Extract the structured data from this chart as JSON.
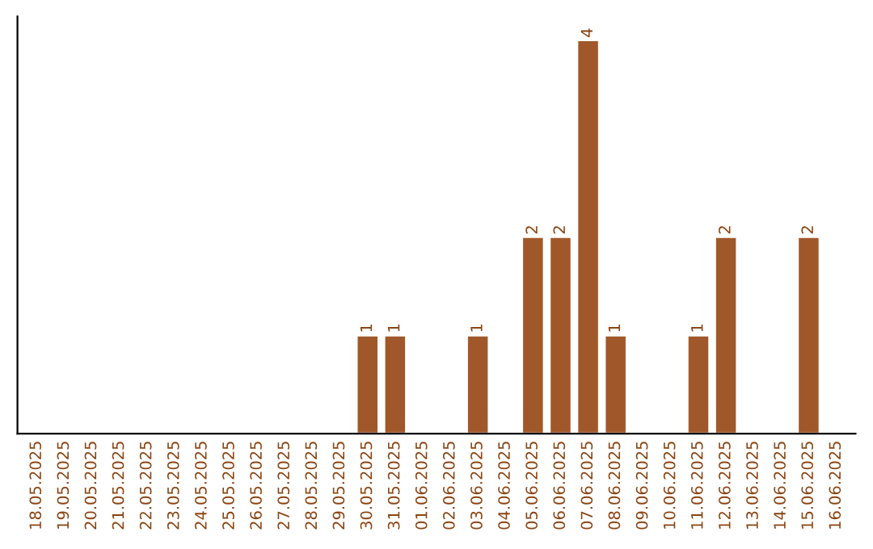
{
  "chart_data": {
    "type": "bar",
    "categories": [
      "18.05.2025",
      "19.05.2025",
      "20.05.2025",
      "21.05.2025",
      "22.05.2025",
      "23.05.2025",
      "24.05.2025",
      "25.05.2025",
      "26.05.2025",
      "27.05.2025",
      "28.05.2025",
      "29.05.2025",
      "30.05.2025",
      "31.05.2025",
      "01.06.2025",
      "02.06.2025",
      "03.06.2025",
      "04.06.2025",
      "05.06.2025",
      "06.06.2025",
      "07.06.2025",
      "08.06.2025",
      "09.06.2025",
      "10.06.2025",
      "11.06.2025",
      "12.06.2025",
      "13.06.2025",
      "14.06.2025",
      "15.06.2025",
      "16.06.2025"
    ],
    "values": [
      null,
      null,
      null,
      null,
      null,
      null,
      null,
      null,
      null,
      null,
      null,
      null,
      1,
      1,
      null,
      null,
      1,
      null,
      2,
      2,
      4,
      1,
      null,
      null,
      1,
      2,
      null,
      null,
      2,
      null
    ],
    "data_labels": true,
    "color": "#a0582a",
    "grid": false
  }
}
